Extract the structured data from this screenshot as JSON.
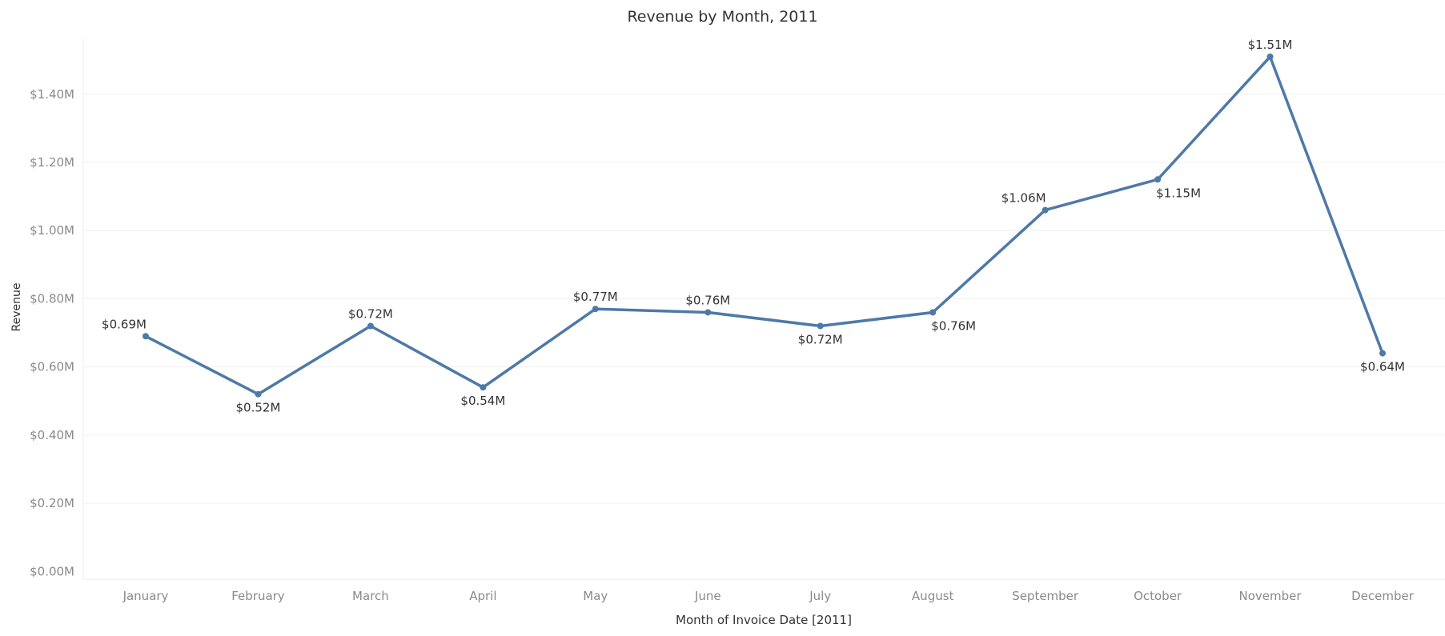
{
  "chart_data": {
    "type": "line",
    "title": "Revenue by Month, 2011",
    "xlabel": "Month of Invoice Date [2011]",
    "ylabel": "Revenue",
    "categories": [
      "January",
      "February",
      "March",
      "April",
      "May",
      "June",
      "July",
      "August",
      "September",
      "October",
      "November",
      "December"
    ],
    "series": [
      {
        "values": [
          0.69,
          0.52,
          0.72,
          0.54,
          0.77,
          0.76,
          0.72,
          0.76,
          1.06,
          1.15,
          1.51,
          0.64
        ],
        "labels": [
          "$0.69M",
          "$0.52M",
          "$0.72M",
          "$0.54M",
          "$0.77M",
          "$0.76M",
          "$0.72M",
          "$0.76M",
          "$1.06M",
          "$1.15M",
          "$1.51M",
          "$0.64M"
        ],
        "label_positions": [
          "above",
          "below",
          "above",
          "below",
          "above",
          "above",
          "below",
          "below",
          "above",
          "below",
          "above",
          "below"
        ],
        "color": "#4e79a7"
      }
    ],
    "y_ticks": [
      0,
      0.2,
      0.4,
      0.6,
      0.8,
      1.0,
      1.2,
      1.4
    ],
    "y_tick_labels": [
      "$0.00M",
      "$0.20M",
      "$0.40M",
      "$0.60M",
      "$0.80M",
      "$1.00M",
      "$1.20M",
      "$1.40M"
    ],
    "ylim": [
      0,
      1.6
    ],
    "grid": true,
    "legend": "none"
  }
}
